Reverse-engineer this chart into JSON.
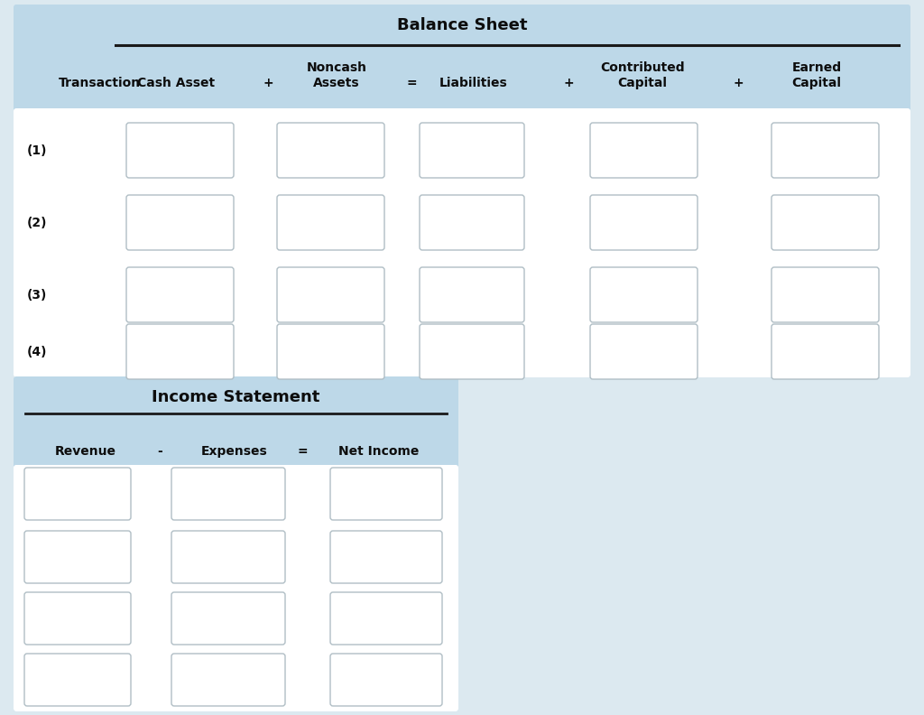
{
  "fig_bg": "#dce9f0",
  "panel_bg": "#bdd8e8",
  "white": "#ffffff",
  "border_color": "#b0bec5",
  "text_color": "#0d0d0d",
  "line_color": "#1a1a1a",
  "bs_title": "Balance Sheet",
  "bs_col_labels": [
    "Transaction",
    "Cash Asset",
    "+",
    "Noncash\nAssets",
    "=",
    "Liabilities",
    "+",
    "Contributed\nCapital",
    "+",
    "Earned\nCapital"
  ],
  "bs_rows": [
    "(1)",
    "(2)",
    "(3)",
    "(4)"
  ],
  "is_title": "Income Statement",
  "is_col_labels": [
    "Revenue",
    "-",
    "Expenses",
    "=",
    "Net Income"
  ],
  "is_rows": 4,
  "fig_width": 10.24,
  "fig_height": 7.92,
  "dpi": 100
}
